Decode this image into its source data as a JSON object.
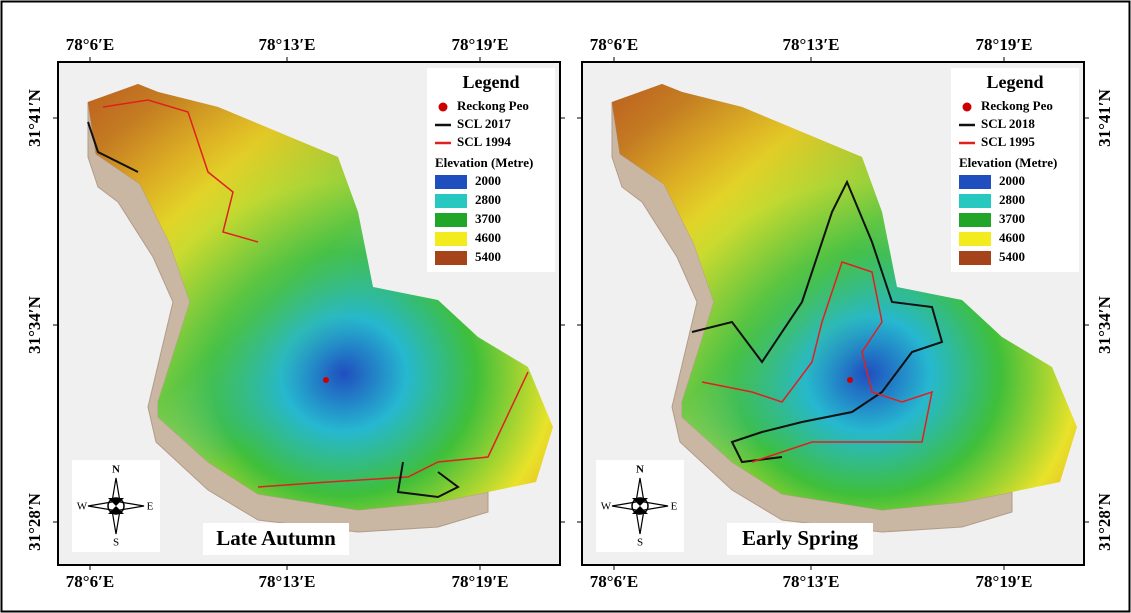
{
  "panels": [
    {
      "x_labels_top": [
        "78°6′E",
        "78°13′E",
        "78°19′E"
      ],
      "x_labels_bottom": [
        "78°6′E",
        "78°13′E",
        "78°19′E"
      ],
      "y_labels": [
        "31°41′N",
        "31°34′N",
        "31°28′N"
      ],
      "legend": {
        "title": "Legend",
        "point": "Reckong Peo",
        "line_black": "SCL 2017",
        "line_red": "SCL 1994",
        "elevation_title": "Elevation (Metre)",
        "elevation_classes": [
          "2000",
          "2800",
          "3700",
          "4600",
          "5400"
        ]
      },
      "compass": {
        "n": "N",
        "s": "S",
        "e": "E",
        "w": "W"
      },
      "label": "Late Autumn"
    },
    {
      "x_labels_top": [
        "78°6′E",
        "78°13′E",
        "78°19′E"
      ],
      "x_labels_bottom": [
        "78°6′E",
        "78°13′E",
        "78°19′E"
      ],
      "y_labels": [
        "31°41′N",
        "31°34′N",
        "31°28′N"
      ],
      "legend": {
        "title": "Legend",
        "point": "Reckong Peo",
        "line_black": "SCL 2018",
        "line_red": "SCL 1995",
        "elevation_title": "Elevation (Metre)",
        "elevation_classes": [
          "2000",
          "2800",
          "3700",
          "4600",
          "5400"
        ]
      },
      "compass": {
        "n": "N",
        "s": "S",
        "e": "E",
        "w": "W"
      },
      "label": "Early Spring"
    }
  ]
}
